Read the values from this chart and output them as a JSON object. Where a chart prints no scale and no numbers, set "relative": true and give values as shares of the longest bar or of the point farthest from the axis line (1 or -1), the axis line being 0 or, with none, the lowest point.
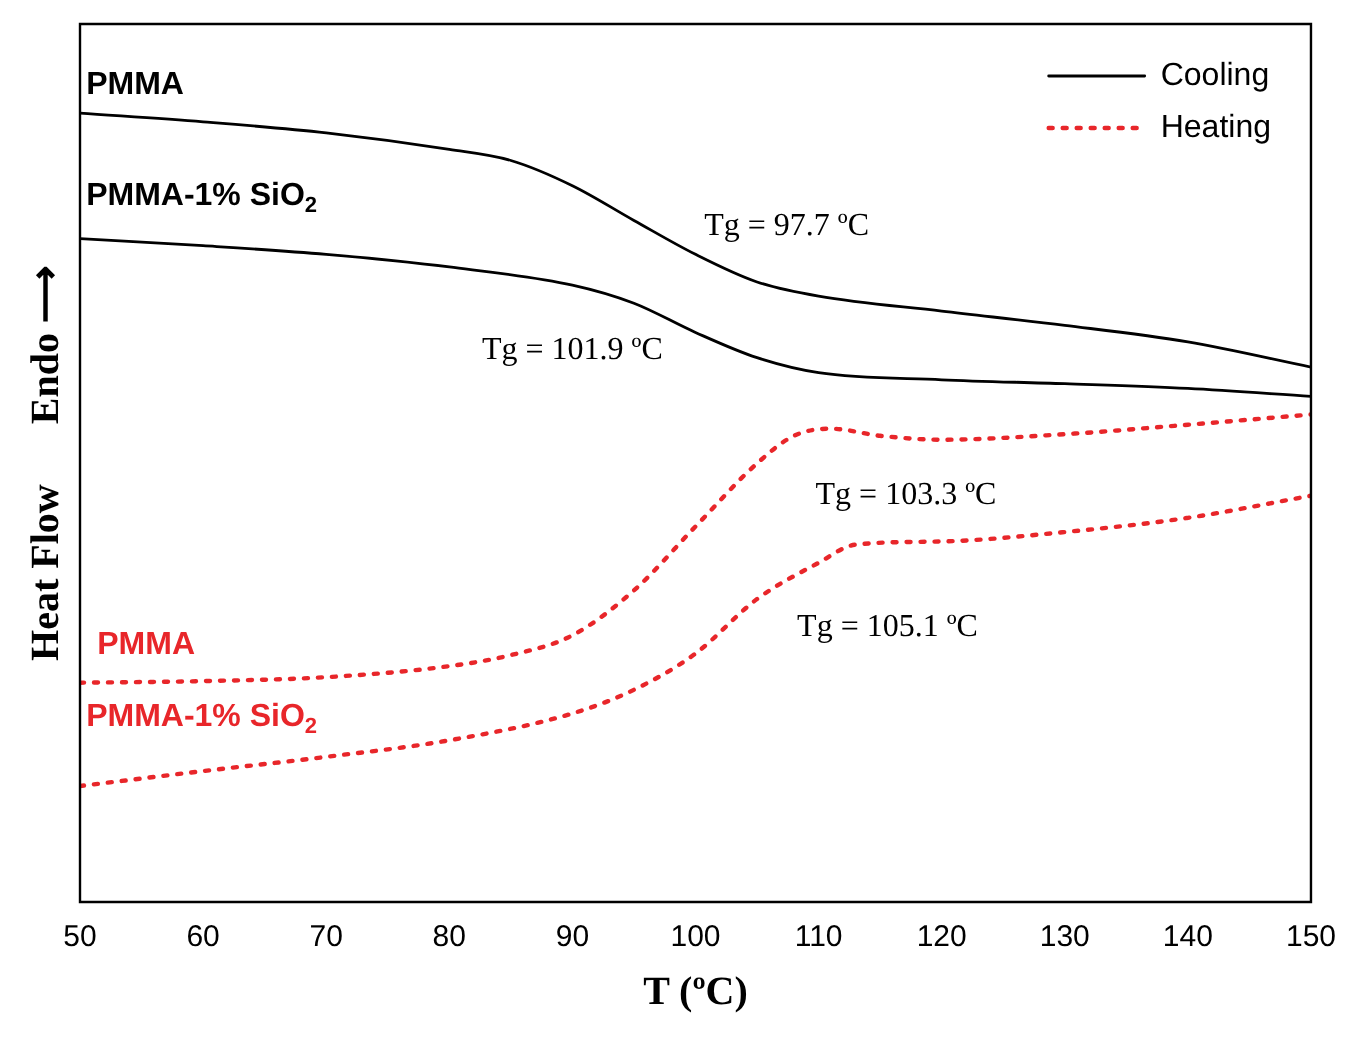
{
  "chart_data": {
    "type": "line",
    "xlabel": "T (ºC)",
    "ylabel": "Heat Flow      Endo ⟶",
    "relative": true,
    "tick_labels": "x",
    "legend": "top right",
    "grid": false,
    "marker": "none",
    "xlim": [
      50,
      150
    ],
    "xticks": [
      50,
      60,
      70,
      80,
      90,
      100,
      110,
      120,
      130,
      140,
      150
    ],
    "series": [
      {
        "name": "Cooling",
        "color": "#000000",
        "line_style": "solid",
        "x": [
          50,
          60,
          70,
          80,
          85,
          90,
          95,
          100,
          105,
          110,
          120,
          130,
          140,
          150
        ],
        "values": [
          1.0,
          0.989,
          0.975,
          0.954,
          0.94,
          0.908,
          0.864,
          0.821,
          0.786,
          0.768,
          0.749,
          0.731,
          0.71,
          0.678
        ]
      },
      {
        "color": "#000000",
        "line_style": "solid",
        "x": [
          50,
          60,
          70,
          80,
          90,
          95,
          100,
          105,
          110,
          120,
          130,
          140,
          150
        ],
        "values": [
          0.841,
          0.832,
          0.821,
          0.805,
          0.782,
          0.759,
          0.722,
          0.69,
          0.671,
          0.662,
          0.657,
          0.651,
          0.641
        ]
      },
      {
        "name": "Heating",
        "color": "#e8262a",
        "line_style": "dotted",
        "x": [
          50,
          60,
          70,
          80,
          85,
          90,
          95,
          100,
          105,
          108,
          111,
          115,
          120,
          130,
          140,
          150
        ],
        "values": [
          0.278,
          0.28,
          0.285,
          0.299,
          0.313,
          0.338,
          0.395,
          0.476,
          0.556,
          0.591,
          0.6,
          0.591,
          0.586,
          0.593,
          0.605,
          0.618
        ]
      },
      {
        "color": "#e8262a",
        "line_style": "dotted",
        "x": [
          50,
          60,
          70,
          80,
          90,
          95,
          100,
          105,
          110,
          113,
          120,
          130,
          140,
          150
        ],
        "values": [
          0.147,
          0.166,
          0.184,
          0.205,
          0.239,
          0.269,
          0.315,
          0.384,
          0.43,
          0.453,
          0.457,
          0.469,
          0.487,
          0.515
        ]
      }
    ],
    "annotations": [
      "PMMA",
      "PMMA-1% SiO$_{2}$",
      "Tg = 97.7 ºC",
      "Tg = 101.9 ºC",
      "Tg = 103.3 ºC",
      "Tg = 105.1 ºC",
      "PMMA",
      "PMMA-1% SiO$_{2}$"
    ]
  }
}
